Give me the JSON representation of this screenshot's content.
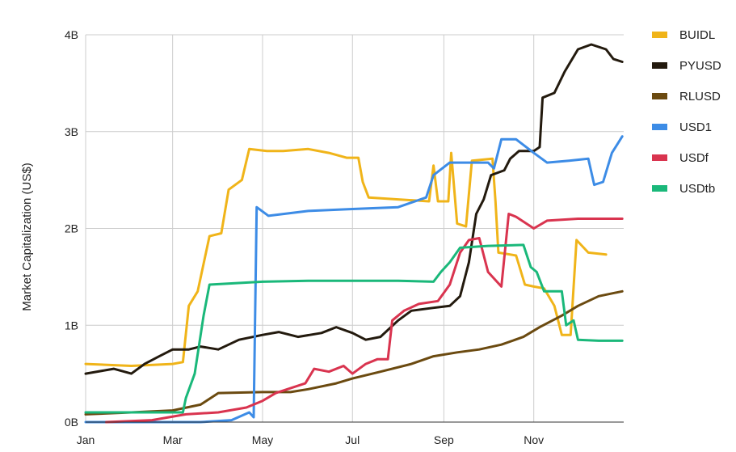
{
  "chart_data": {
    "type": "line",
    "ylabel": "Market Capitalization (US$)",
    "xlabel": "",
    "x_ticks": [
      "Jan",
      "Mar",
      "May",
      "Jul",
      "Sep",
      "Nov"
    ],
    "y_ticks": [
      "0B",
      "1B",
      "2B",
      "3B",
      "4B"
    ],
    "ylim": [
      0,
      4
    ],
    "y_unit": "B",
    "grid": true,
    "legend_position": "right",
    "series": [
      {
        "name": "BUIDL",
        "color": "#f0b419",
        "points": [
          [
            "Jan 1",
            0.6
          ],
          [
            "Feb 1",
            0.58
          ],
          [
            "Mar 1",
            0.6
          ],
          [
            "Mar 8",
            0.62
          ],
          [
            "Mar 12",
            1.2
          ],
          [
            "Mar 18",
            1.35
          ],
          [
            "Mar 26",
            1.92
          ],
          [
            "Apr 3",
            1.95
          ],
          [
            "Apr 8",
            2.4
          ],
          [
            "Apr 17",
            2.5
          ],
          [
            "Apr 22",
            2.82
          ],
          [
            "May 4",
            2.8
          ],
          [
            "May 15",
            2.8
          ],
          [
            "Jun 1",
            2.82
          ],
          [
            "Jun 15",
            2.78
          ],
          [
            "Jun 27",
            2.73
          ],
          [
            "Jul 5",
            2.73
          ],
          [
            "Jul 8",
            2.48
          ],
          [
            "Jul 12",
            2.32
          ],
          [
            "Aug 1",
            2.3
          ],
          [
            "Aug 22",
            2.28
          ],
          [
            "Aug 25",
            2.65
          ],
          [
            "Aug 28",
            2.28
          ],
          [
            "Sep 4",
            2.28
          ],
          [
            "Sep 6",
            2.78
          ],
          [
            "Sep 10",
            2.05
          ],
          [
            "Sep 16",
            2.02
          ],
          [
            "Sep 20",
            2.7
          ],
          [
            "Oct 4",
            2.72
          ],
          [
            "Oct 6",
            2.28
          ],
          [
            "Oct 8",
            1.75
          ],
          [
            "Oct 20",
            1.72
          ],
          [
            "Oct 26",
            1.42
          ],
          [
            "Nov 1",
            1.4
          ],
          [
            "Nov 8",
            1.38
          ],
          [
            "Nov 15",
            1.2
          ],
          [
            "Nov 20",
            0.9
          ],
          [
            "Nov 26",
            0.9
          ],
          [
            "Nov 30",
            1.88
          ],
          [
            "Dec 8",
            1.75
          ],
          [
            "Dec 20",
            1.73
          ]
        ]
      },
      {
        "name": "PYUSD",
        "color": "#231a0e",
        "points": [
          [
            "Jan 1",
            0.5
          ],
          [
            "Jan 20",
            0.55
          ],
          [
            "Feb 1",
            0.5
          ],
          [
            "Feb 10",
            0.6
          ],
          [
            "Feb 20",
            0.68
          ],
          [
            "Mar 1",
            0.75
          ],
          [
            "Mar 12",
            0.75
          ],
          [
            "Mar 20",
            0.78
          ],
          [
            "Apr 1",
            0.75
          ],
          [
            "Apr 15",
            0.85
          ],
          [
            "May 1",
            0.9
          ],
          [
            "May 12",
            0.93
          ],
          [
            "May 25",
            0.88
          ],
          [
            "Jun 10",
            0.92
          ],
          [
            "Jun 20",
            0.98
          ],
          [
            "Jul 1",
            0.92
          ],
          [
            "Jul 10",
            0.85
          ],
          [
            "Jul 20",
            0.88
          ],
          [
            "Aug 1",
            1.05
          ],
          [
            "Aug 10",
            1.15
          ],
          [
            "Aug 25",
            1.18
          ],
          [
            "Sep 5",
            1.2
          ],
          [
            "Sep 12",
            1.3
          ],
          [
            "Sep 18",
            1.65
          ],
          [
            "Sep 23",
            2.15
          ],
          [
            "Sep 28",
            2.3
          ],
          [
            "Oct 3",
            2.55
          ],
          [
            "Oct 12",
            2.6
          ],
          [
            "Oct 16",
            2.72
          ],
          [
            "Oct 22",
            2.8
          ],
          [
            "Nov 1",
            2.8
          ],
          [
            "Nov 5",
            2.84
          ],
          [
            "Nov 7",
            3.35
          ],
          [
            "Nov 15",
            3.4
          ],
          [
            "Nov 22",
            3.62
          ],
          [
            "Dec 1",
            3.85
          ],
          [
            "Dec 10",
            3.9
          ],
          [
            "Dec 20",
            3.85
          ],
          [
            "Dec 25",
            3.75
          ],
          [
            "Dec 31",
            3.72
          ]
        ]
      },
      {
        "name": "RLUSD",
        "color": "#6b4a10",
        "points": [
          [
            "Jan 1",
            0.08
          ],
          [
            "Feb 1",
            0.1
          ],
          [
            "Mar 1",
            0.12
          ],
          [
            "Mar 20",
            0.18
          ],
          [
            "Apr 1",
            0.3
          ],
          [
            "May 1",
            0.31
          ],
          [
            "May 20",
            0.31
          ],
          [
            "Jun 1",
            0.34
          ],
          [
            "Jun 20",
            0.4
          ],
          [
            "Jul 1",
            0.45
          ],
          [
            "Jul 20",
            0.52
          ],
          [
            "Aug 10",
            0.6
          ],
          [
            "Aug 25",
            0.68
          ],
          [
            "Sep 10",
            0.72
          ],
          [
            "Sep 25",
            0.75
          ],
          [
            "Oct 10",
            0.8
          ],
          [
            "Oct 25",
            0.88
          ],
          [
            "Nov 5",
            0.98
          ],
          [
            "Nov 20",
            1.1
          ],
          [
            "Dec 1",
            1.2
          ],
          [
            "Dec 15",
            1.3
          ],
          [
            "Dec 31",
            1.35
          ]
        ]
      },
      {
        "name": "USD1",
        "color": "#3d8ce6",
        "points": [
          [
            "Jan 1",
            0
          ],
          [
            "Mar 20",
            0
          ],
          [
            "Apr 10",
            0.02
          ],
          [
            "Apr 22",
            0.1
          ],
          [
            "Apr 25",
            0.05
          ],
          [
            "Apr 27",
            2.22
          ],
          [
            "May 5",
            2.13
          ],
          [
            "Jun 1",
            2.18
          ],
          [
            "Jul 1",
            2.2
          ],
          [
            "Aug 1",
            2.22
          ],
          [
            "Aug 20",
            2.32
          ],
          [
            "Aug 25",
            2.55
          ],
          [
            "Sep 5",
            2.68
          ],
          [
            "Sep 20",
            2.68
          ],
          [
            "Oct 1",
            2.68
          ],
          [
            "Oct 5",
            2.62
          ],
          [
            "Oct 10",
            2.92
          ],
          [
            "Oct 20",
            2.92
          ],
          [
            "Nov 1",
            2.78
          ],
          [
            "Nov 10",
            2.68
          ],
          [
            "Nov 25",
            2.7
          ],
          [
            "Dec 8",
            2.72
          ],
          [
            "Dec 12",
            2.45
          ],
          [
            "Dec 18",
            2.48
          ],
          [
            "Dec 24",
            2.78
          ],
          [
            "Dec 31",
            2.95
          ]
        ]
      },
      {
        "name": "USDf",
        "color": "#d9344f",
        "points": [
          [
            "Jan 15",
            0
          ],
          [
            "Feb 15",
            0.02
          ],
          [
            "Mar 10",
            0.08
          ],
          [
            "Apr 1",
            0.1
          ],
          [
            "Apr 20",
            0.15
          ],
          [
            "May 1",
            0.22
          ],
          [
            "May 10",
            0.3
          ],
          [
            "May 20",
            0.35
          ],
          [
            "May 30",
            0.4
          ],
          [
            "Jun 5",
            0.55
          ],
          [
            "Jun 15",
            0.52
          ],
          [
            "Jun 25",
            0.58
          ],
          [
            "Jul 1",
            0.5
          ],
          [
            "Jul 10",
            0.6
          ],
          [
            "Jul 18",
            0.65
          ],
          [
            "Jul 25",
            0.65
          ],
          [
            "Jul 28",
            1.05
          ],
          [
            "Aug 5",
            1.15
          ],
          [
            "Aug 15",
            1.22
          ],
          [
            "Aug 28",
            1.25
          ],
          [
            "Sep 5",
            1.42
          ],
          [
            "Sep 12",
            1.75
          ],
          [
            "Sep 18",
            1.88
          ],
          [
            "Sep 25",
            1.9
          ],
          [
            "Oct 1",
            1.55
          ],
          [
            "Oct 10",
            1.4
          ],
          [
            "Oct 15",
            2.15
          ],
          [
            "Oct 20",
            2.12
          ],
          [
            "Nov 1",
            2.0
          ],
          [
            "Nov 10",
            2.08
          ],
          [
            "Dec 1",
            2.1
          ],
          [
            "Dec 31",
            2.1
          ]
        ]
      },
      {
        "name": "USDtb",
        "color": "#1ab87a",
        "points": [
          [
            "Jan 1",
            0.1
          ],
          [
            "Feb 1",
            0.1
          ],
          [
            "Mar 1",
            0.1
          ],
          [
            "Mar 8",
            0.1
          ],
          [
            "Mar 10",
            0.25
          ],
          [
            "Mar 16",
            0.5
          ],
          [
            "Mar 22",
            1.1
          ],
          [
            "Mar 26",
            1.42
          ],
          [
            "May 1",
            1.45
          ],
          [
            "Jun 1",
            1.46
          ],
          [
            "Jul 1",
            1.46
          ],
          [
            "Aug 1",
            1.46
          ],
          [
            "Aug 25",
            1.45
          ],
          [
            "Aug 30",
            1.55
          ],
          [
            "Sep 5",
            1.65
          ],
          [
            "Sep 12",
            1.8
          ],
          [
            "Oct 1",
            1.82
          ],
          [
            "Oct 25",
            1.83
          ],
          [
            "Oct 30",
            1.6
          ],
          [
            "Nov 3",
            1.55
          ],
          [
            "Nov 8",
            1.35
          ],
          [
            "Nov 20",
            1.35
          ],
          [
            "Nov 23",
            1.0
          ],
          [
            "Nov 28",
            1.05
          ],
          [
            "Dec 1",
            0.85
          ],
          [
            "Dec 15",
            0.84
          ],
          [
            "Dec 31",
            0.84
          ]
        ]
      }
    ]
  }
}
